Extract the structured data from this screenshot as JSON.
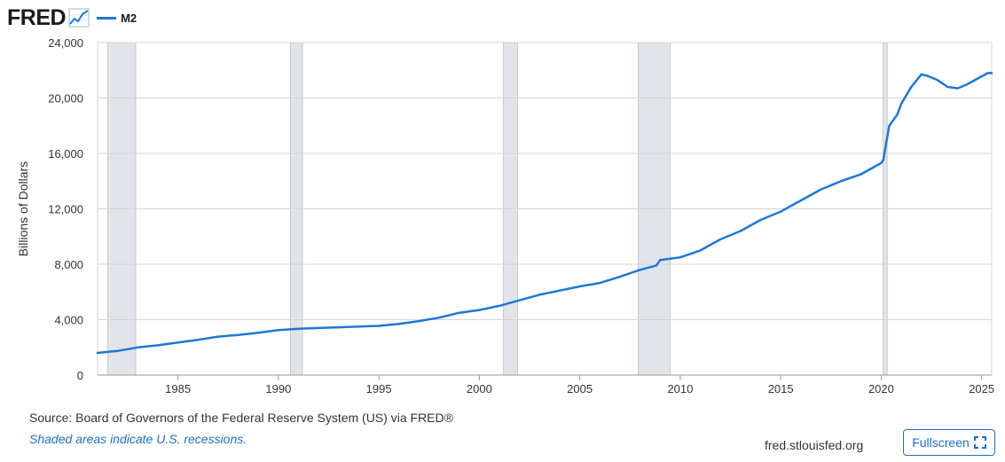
{
  "header": {
    "logo_text": "FRED",
    "legend_label": "M2"
  },
  "footer": {
    "source": "Source: Board of Governors of the Federal Reserve System (US) via FRED®",
    "note": "Shaded areas indicate U.S. recessions.",
    "site": "fred.stlouisfed.org",
    "fullscreen_label": "Fullscreen"
  },
  "icons": {
    "logo_graph": "line-graph-icon",
    "fullscreen": "expand-icon"
  },
  "colors": {
    "series": "#1f77d4",
    "recession": "#e1e5ea",
    "grid": "#d4d4d4",
    "link": "#1f6fbf"
  },
  "chart_data": {
    "type": "line",
    "title": "",
    "xlabel": "",
    "ylabel": "Billions of Dollars",
    "xlim": [
      1981.0,
      2025.5
    ],
    "ylim": [
      0,
      24000
    ],
    "y_ticks": [
      0,
      4000,
      8000,
      12000,
      16000,
      20000,
      24000
    ],
    "y_tick_labels": [
      "0",
      "4,000",
      "8,000",
      "12,000",
      "16,000",
      "20,000",
      "24,000"
    ],
    "x_ticks": [
      1985,
      1990,
      1995,
      2000,
      2005,
      2010,
      2015,
      2020,
      2025
    ],
    "x_tick_labels": [
      "1985",
      "1990",
      "1995",
      "2000",
      "2005",
      "2010",
      "2015",
      "2020",
      "2025"
    ],
    "grid": true,
    "legend": "top-left",
    "recessions": [
      [
        1981.5,
        1982.9
      ],
      [
        1990.6,
        1991.2
      ],
      [
        2001.2,
        2001.9
      ],
      [
        2007.9,
        2009.5
      ],
      [
        2020.1,
        2020.3
      ]
    ],
    "series": [
      {
        "name": "M2",
        "x": [
          1981.0,
          1982.0,
          1983.0,
          1984.0,
          1985.0,
          1986.0,
          1987.0,
          1988.0,
          1989.0,
          1990.0,
          1991.0,
          1992.0,
          1993.0,
          1994.0,
          1995.0,
          1996.0,
          1997.0,
          1998.0,
          1999.0,
          2000.0,
          2001.0,
          2002.0,
          2003.0,
          2004.0,
          2005.0,
          2006.0,
          2007.0,
          2008.0,
          2008.8,
          2009.0,
          2010.0,
          2011.0,
          2012.0,
          2013.0,
          2014.0,
          2015.0,
          2016.0,
          2017.0,
          2018.0,
          2019.0,
          2020.0,
          2020.1,
          2020.4,
          2020.8,
          2021.0,
          2021.5,
          2022.0,
          2022.3,
          2022.8,
          2023.3,
          2023.8,
          2024.3,
          2024.8,
          2025.3,
          2025.5
        ],
        "values": [
          1600,
          1750,
          2000,
          2150,
          2350,
          2550,
          2780,
          2900,
          3050,
          3250,
          3350,
          3400,
          3450,
          3500,
          3550,
          3700,
          3900,
          4150,
          4500,
          4700,
          5000,
          5400,
          5800,
          6100,
          6400,
          6650,
          7100,
          7600,
          7900,
          8300,
          8500,
          9000,
          9800,
          10400,
          11200,
          11800,
          12600,
          13400,
          14000,
          14500,
          15300,
          15500,
          18000,
          18800,
          19600,
          20800,
          21700,
          21600,
          21300,
          20800,
          20700,
          21000,
          21400,
          21800,
          21800
        ]
      }
    ]
  }
}
